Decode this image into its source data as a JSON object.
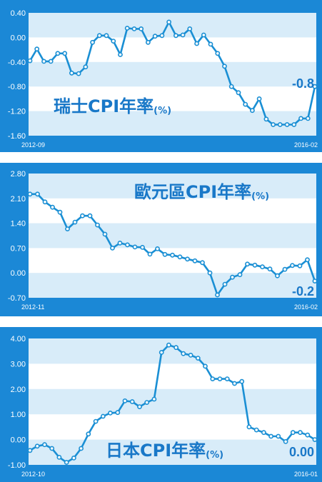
{
  "chart_data": [
    {
      "type": "line",
      "title": "瑞士CPI年率",
      "title_unit": "(%)",
      "end_value_label": "-0.8",
      "x_start_label": "2012-09",
      "x_end_label": "2016-02",
      "y_ticks": [
        "0.40",
        "0.00",
        "-0.40",
        "-0.80",
        "-1.20",
        "-1.60"
      ],
      "ylim": [
        -1.6,
        0.4
      ],
      "values": [
        -0.38,
        -0.19,
        -0.39,
        -0.39,
        -0.26,
        -0.26,
        -0.58,
        -0.59,
        -0.48,
        -0.08,
        0.03,
        0.03,
        -0.06,
        -0.28,
        0.15,
        0.14,
        0.14,
        -0.08,
        0.02,
        0.03,
        0.25,
        0.03,
        0.04,
        0.14,
        -0.1,
        0.04,
        -0.11,
        -0.26,
        -0.47,
        -0.8,
        -0.9,
        -1.09,
        -1.19,
        -1.0,
        -1.33,
        -1.42,
        -1.42,
        -1.42,
        -1.42,
        -1.32,
        -1.32,
        -0.8
      ]
    },
    {
      "type": "line",
      "title": "歐元區CPI年率",
      "title_unit": "(%)",
      "end_value_label": "-0.2",
      "x_start_label": "2012-11",
      "x_end_label": "2016-02",
      "y_ticks": [
        "2.80",
        "2.10",
        "1.40",
        "0.70",
        "0.00",
        "-0.70"
      ],
      "ylim": [
        -0.7,
        2.8
      ],
      "values": [
        2.22,
        2.22,
        2.0,
        1.85,
        1.71,
        1.24,
        1.43,
        1.61,
        1.61,
        1.35,
        1.09,
        0.7,
        0.84,
        0.79,
        0.73,
        0.72,
        0.53,
        0.68,
        0.52,
        0.5,
        0.45,
        0.39,
        0.34,
        0.29,
        0.0,
        -0.62,
        -0.32,
        -0.12,
        -0.05,
        0.25,
        0.22,
        0.17,
        0.11,
        -0.08,
        0.1,
        0.21,
        0.2,
        0.37,
        -0.23
      ]
    },
    {
      "type": "line",
      "title": "日本CPI年率",
      "title_unit": "(%)",
      "end_value_label": "0.00",
      "x_start_label": "2012-10",
      "x_end_label": "2016-01",
      "y_ticks": [
        "4.00",
        "3.00",
        "2.00",
        "1.00",
        "0.00",
        "-1.00"
      ],
      "ylim": [
        -1.0,
        4.0
      ],
      "values": [
        -0.43,
        -0.26,
        -0.2,
        -0.35,
        -0.7,
        -0.9,
        -0.73,
        -0.35,
        0.22,
        0.72,
        0.92,
        1.05,
        1.07,
        1.53,
        1.5,
        1.3,
        1.47,
        1.6,
        3.45,
        3.74,
        3.64,
        3.4,
        3.34,
        3.22,
        2.9,
        2.4,
        2.4,
        2.4,
        2.22,
        2.3,
        0.5,
        0.38,
        0.28,
        0.13,
        0.13,
        -0.08,
        0.28,
        0.28,
        0.18,
        0.0
      ]
    }
  ],
  "colors": {
    "frame": "#1b88d6",
    "band": "#d8ecf9",
    "line": "#1a8fd4",
    "point_fill": "#ffffff",
    "text": "#1978c8",
    "tick_text": "#ffffff"
  }
}
